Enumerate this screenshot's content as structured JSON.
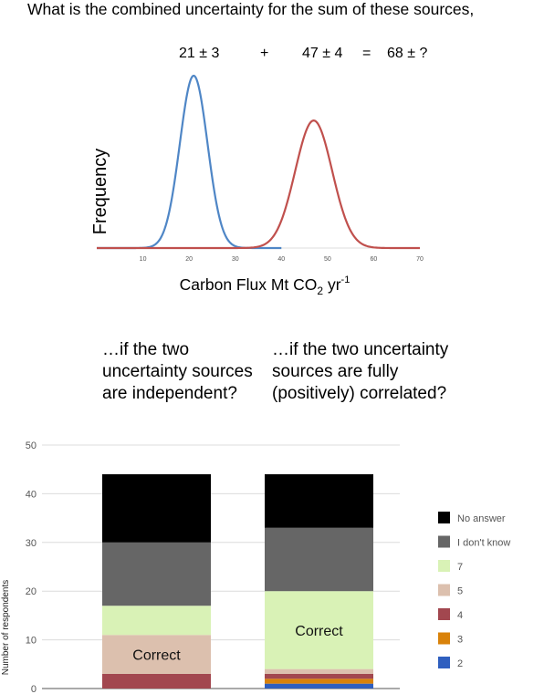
{
  "question": {
    "title": "What is the combined uncertainty for the sum of these sources,",
    "eq_term1": "21 ± 3",
    "eq_plus": "+",
    "eq_term2": "47 ± 4",
    "eq_equals": "=",
    "eq_result": "68 ± ?",
    "sub_q1": "…if the two uncertainty sources are independent?",
    "sub_q2": "…if the two uncertainty sources are fully (positively) correlated?"
  },
  "chart_data": [
    {
      "type": "line",
      "ylabel": "Frequency",
      "xlabel": "Carbon Flux Mt CO",
      "xlabel_sub": "2",
      "xlabel_unit": " yr",
      "xlabel_sup": "-1",
      "x_ticks": [
        "10",
        "20",
        "30",
        "40",
        "50",
        "60",
        "70"
      ],
      "xlim": [
        0,
        70
      ],
      "series": [
        {
          "mean": 21,
          "sd": 3,
          "x_range": [
            0,
            40
          ],
          "color": "#4f86c6"
        },
        {
          "mean": 47,
          "sd": 4,
          "x_range": [
            0,
            70
          ],
          "color": "#c0504d"
        }
      ]
    },
    {
      "type": "bar",
      "stacked": true,
      "ylabel": "Number of respondents",
      "ylim": [
        0,
        50
      ],
      "y_ticks": [
        "0",
        "10",
        "20",
        "30",
        "40",
        "50"
      ],
      "grid": true,
      "legend_position": "right",
      "series_order": [
        "2",
        "3",
        "4",
        "5",
        "7",
        "I don't know",
        "No answer"
      ],
      "colors": {
        "2": "#2f5fbf",
        "3": "#d9820a",
        "4": "#a2474f",
        "5": "#dcc0ae",
        "7": "#d9f2b6",
        "I don't know": "#666666",
        "No answer": "#000000"
      },
      "legend": [
        "No answer",
        "I don't know",
        "7",
        "5",
        "4",
        "3",
        "2"
      ],
      "bars": [
        {
          "values": {
            "2": 0,
            "3": 0,
            "4": 3,
            "5": 8,
            "7": 6,
            "I don't know": 13,
            "No answer": 14
          },
          "annotation": "Correct",
          "annotation_series": "5"
        },
        {
          "values": {
            "2": 1,
            "3": 1,
            "4": 1,
            "5": 1,
            "7": 16,
            "I don't know": 13,
            "No answer": 11
          },
          "annotation": "Correct",
          "annotation_series": "7"
        }
      ]
    }
  ]
}
